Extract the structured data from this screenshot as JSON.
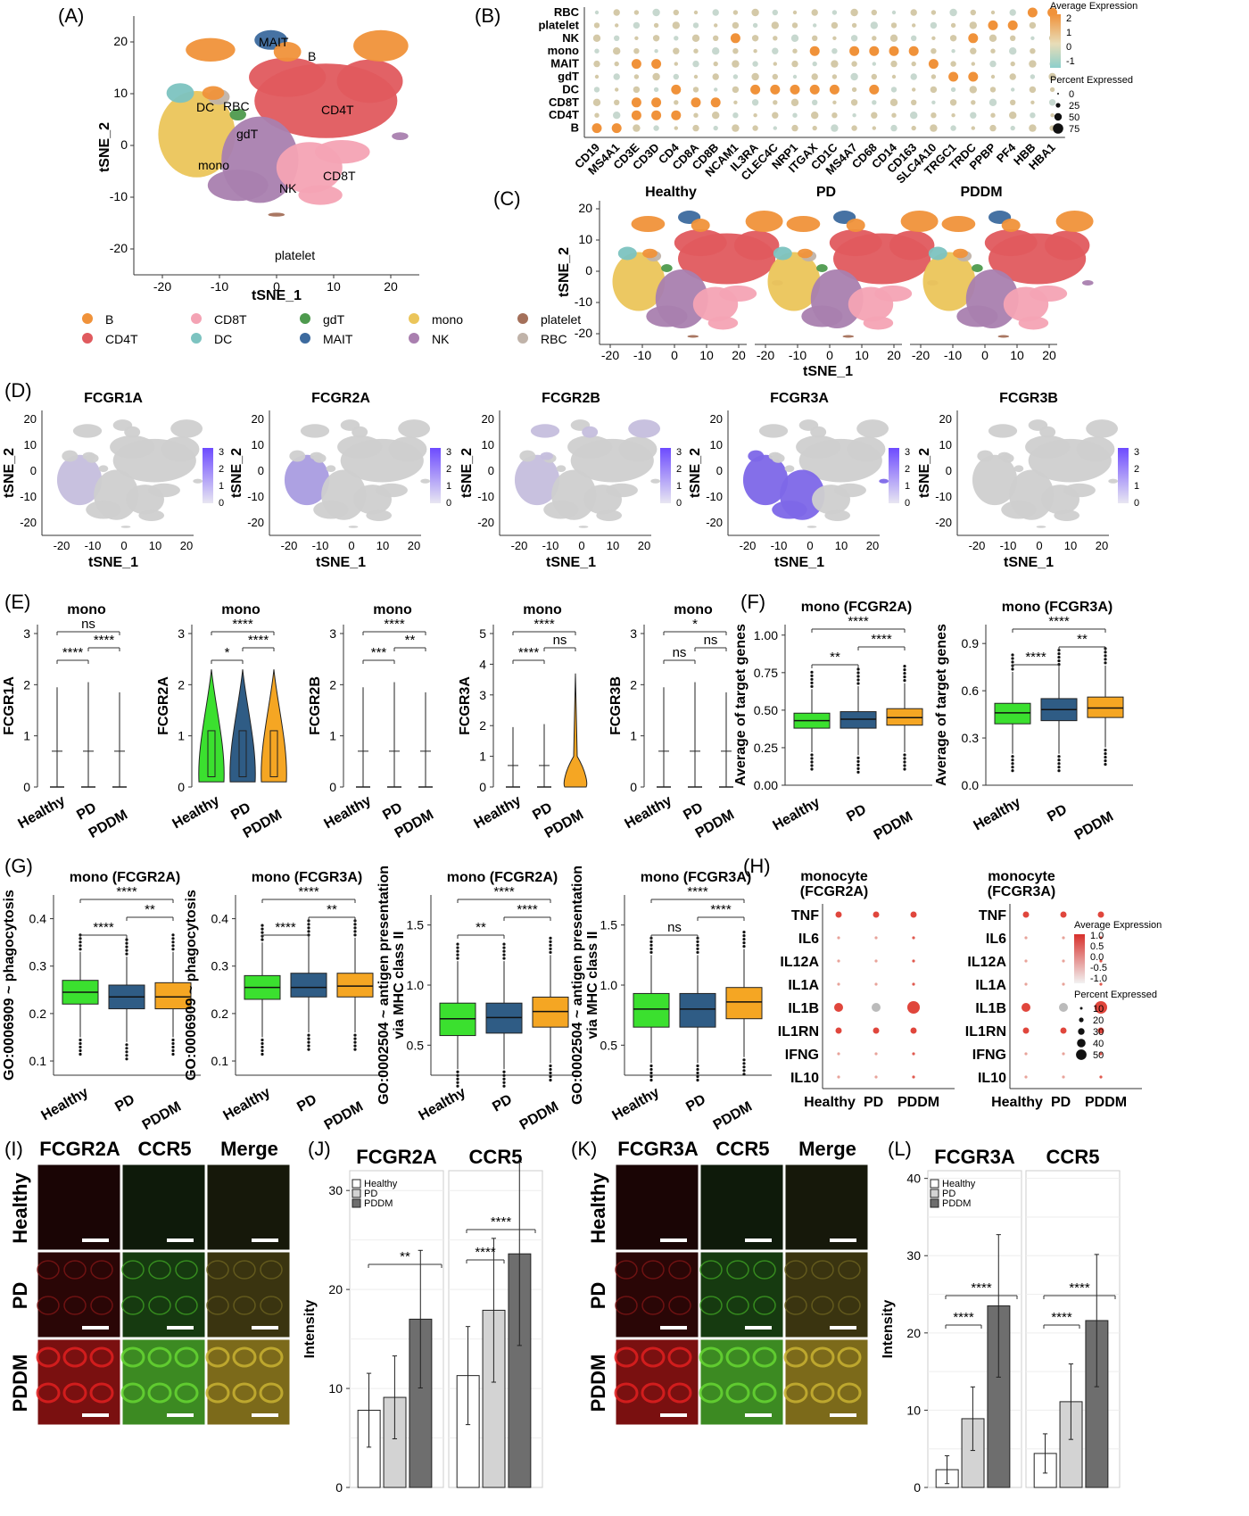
{
  "panel_labels": {
    "A": "(A)",
    "B": "(B)",
    "C": "(C)",
    "D": "(D)",
    "E": "(E)",
    "F": "(F)",
    "G": "(G)",
    "H": "(H)",
    "I": "(I)",
    "J": "(J)",
    "K": "(K)",
    "L": "(L)"
  },
  "tsne": {
    "xlabel": "tSNE_1",
    "ylabel": "tSNE_2",
    "x_ticks": [
      "-20",
      "-10",
      "0",
      "10",
      "20"
    ],
    "y_ticks": [
      "20",
      "10",
      "0",
      "-10",
      "-20"
    ],
    "cluster_labels": [
      "MAIT",
      "B",
      "DC",
      "RBC",
      "CD4T",
      "gdT",
      "mono",
      "NK",
      "CD8T",
      "platelet"
    ],
    "legend": [
      {
        "name": "B",
        "color": "#F0923A"
      },
      {
        "name": "CD8T",
        "color": "#F4A3B4"
      },
      {
        "name": "gdT",
        "color": "#4E9A4E"
      },
      {
        "name": "mono",
        "color": "#EBC55A"
      },
      {
        "name": "platelet",
        "color": "#A4705A"
      },
      {
        "name": "CD4T",
        "color": "#E05A5E"
      },
      {
        "name": "DC",
        "color": "#7CC3C0"
      },
      {
        "name": "MAIT",
        "color": "#3C6A9E"
      },
      {
        "name": "NK",
        "color": "#A97FAF"
      },
      {
        "name": "RBC",
        "color": "#C0B3A9"
      }
    ]
  },
  "dotplot_B": {
    "rows": [
      "RBC",
      "platelet",
      "NK",
      "mono",
      "MAIT",
      "gdT",
      "DC",
      "CD8T",
      "CD4T",
      "B"
    ],
    "cols": [
      "CD19",
      "MS4A1",
      "CD3E",
      "CD3D",
      "CD4",
      "CD8A",
      "CD8B",
      "NCAM1",
      "IL3RA",
      "CLEC4C",
      "NRP1",
      "ITGAX",
      "CD1C",
      "MS4A7",
      "CD68",
      "CD14",
      "CD163",
      "SLC4A10",
      "TRGC1",
      "TRDC",
      "PPBP",
      "PF4",
      "HBB",
      "HBA1"
    ],
    "legend_title": "Average Expression",
    "legend_ticks": [
      "2",
      "1",
      "0",
      "-1"
    ],
    "pct_title": "Percent Expressed",
    "pct_ticks": [
      "0",
      "25",
      "50",
      "75"
    ]
  },
  "panel_C": {
    "groups": [
      "Healthy",
      "PD",
      "PDDM"
    ]
  },
  "panel_D": {
    "genes": [
      "FCGR1A",
      "FCGR2A",
      "FCGR2B",
      "FCGR3A",
      "FCGR3B"
    ],
    "colorbar_ticks": [
      "3",
      "2",
      "1",
      "0"
    ],
    "x_ticks": [
      "-20",
      "-10",
      "0",
      "10",
      "20"
    ],
    "y_ticks": [
      "20",
      "10",
      "0",
      "-10",
      "-20"
    ]
  },
  "panel_E": {
    "title": "mono",
    "xcats": [
      "Healthy",
      "PD",
      "PDDM"
    ],
    "plots": [
      {
        "gene": "FCGR1A",
        "yticks": [
          "3",
          "2",
          "1",
          "0"
        ],
        "sig": [
          "ns",
          "****",
          "****"
        ]
      },
      {
        "gene": "FCGR2A",
        "yticks": [
          "3",
          "2",
          "1",
          "0"
        ],
        "sig": [
          "****",
          "*",
          "****"
        ]
      },
      {
        "gene": "FCGR2B",
        "yticks": [
          "3",
          "2",
          "1",
          "0"
        ],
        "sig": [
          "****",
          "***",
          "**"
        ]
      },
      {
        "gene": "FCGR3A",
        "yticks": [
          "5",
          "4",
          "3",
          "2",
          "1",
          "0"
        ],
        "sig": [
          "****",
          "****",
          "ns"
        ]
      },
      {
        "gene": "FCGR3B",
        "yticks": [
          "3",
          "2",
          "1",
          "0"
        ],
        "sig": [
          "*",
          "ns",
          "ns"
        ]
      }
    ]
  },
  "panel_F": {
    "ylabel": "Average of target genes",
    "xcats": [
      "Healthy",
      "PD",
      "PDDM"
    ],
    "plots": [
      {
        "title": "mono (FCGR2A)",
        "yticks": [
          "1.00",
          "0.75",
          "0.50",
          "0.25",
          "0.00"
        ],
        "sig": [
          "****",
          "**",
          "****"
        ]
      },
      {
        "title": "mono (FCGR3A)",
        "yticks": [
          "0.9",
          "0.6",
          "0.3",
          "0.0"
        ],
        "sig": [
          "****",
          "****",
          "**"
        ]
      }
    ]
  },
  "panel_G": {
    "xcats": [
      "Healthy",
      "PD",
      "PDDM"
    ],
    "plots": [
      {
        "title": "mono (FCGR2A)",
        "ylabel": "GO:0006909 ~ phagocytosis",
        "yticks": [
          "0.4",
          "0.3",
          "0.2",
          "0.1"
        ],
        "sig": [
          "****",
          "****",
          "**"
        ]
      },
      {
        "title": "mono (FCGR3A)",
        "ylabel": "GO:0006909 ~ phagocytosis",
        "yticks": [
          "0.4",
          "0.3",
          "0.2",
          "0.1"
        ],
        "sig": [
          "****",
          "****",
          "**"
        ]
      },
      {
        "title": "mono (FCGR2A)",
        "ylabel": "GO:0002504 ~ antigen presentation via MHC class II",
        "yticks": [
          "1.5",
          "1.0",
          "0.5"
        ],
        "sig": [
          "****",
          "**",
          "****"
        ]
      },
      {
        "title": "mono (FCGR3A)",
        "ylabel": "GO:0002504 ~ antigen presentation via MHC class II",
        "yticks": [
          "1.5",
          "1.0",
          "0.5"
        ],
        "sig": [
          "****",
          "ns",
          "****"
        ]
      }
    ]
  },
  "panel_H": {
    "titles": [
      "monocyte (FCGR2A)",
      "monocyte (FCGR3A)"
    ],
    "title_lines": [
      [
        "monocyte",
        "(FCGR2A)"
      ],
      [
        "monocyte",
        "(FCGR3A)"
      ]
    ],
    "rows": [
      "TNF",
      "IL6",
      "IL12A",
      "IL1A",
      "IL1B",
      "IL1RN",
      "IFNG",
      "IL10"
    ],
    "cols": [
      "Healthy",
      "PD",
      "PDDM"
    ],
    "legend_title": "Average Expression",
    "legend_ticks": [
      "1.0",
      "0.5",
      "0.0",
      "-0.5",
      "-1.0"
    ],
    "pct_title": "Percent Expressed",
    "pct_ticks": [
      "10",
      "20",
      "30",
      "40",
      "50"
    ]
  },
  "panel_I": {
    "cols": [
      "FCGR2A",
      "CCR5",
      "Merge"
    ],
    "rows": [
      "Healthy",
      "PD",
      "PDDM"
    ]
  },
  "panel_K": {
    "cols": [
      "FCGR3A",
      "CCR5",
      "Merge"
    ],
    "rows": [
      "Healthy",
      "PD",
      "PDDM"
    ]
  },
  "chart_data": [
    {
      "type": "bar",
      "title": "FCGR2A",
      "ylabel": "Intensity",
      "categories": [
        "Healthy",
        "PD",
        "PDDM"
      ],
      "values": [
        7.8,
        9.1,
        17.0
      ],
      "ylim": [
        0,
        32
      ],
      "yticks": [
        "30",
        "20",
        "10",
        "0"
      ],
      "sig": [
        "**"
      ]
    },
    {
      "type": "bar",
      "title": "CCR5",
      "ylabel": "Intensity",
      "categories": [
        "Healthy",
        "PD",
        "PDDM"
      ],
      "values": [
        11.3,
        17.9,
        23.6
      ],
      "ylim": [
        0,
        32
      ],
      "sig": [
        "****",
        "****"
      ]
    },
    {
      "type": "bar",
      "title": "FCGR3A",
      "ylabel": "Intensity",
      "categories": [
        "Healthy",
        "PD",
        "PDDM"
      ],
      "values": [
        2.3,
        8.9,
        23.5
      ],
      "ylim": [
        0,
        41
      ],
      "yticks": [
        "40",
        "30",
        "20",
        "10",
        "0"
      ],
      "sig": [
        "****",
        "****"
      ]
    },
    {
      "type": "bar",
      "title": "CCR5",
      "ylabel": "Intensity",
      "categories": [
        "Healthy",
        "PD",
        "PDDM"
      ],
      "values": [
        4.4,
        11.1,
        21.6
      ],
      "ylim": [
        0,
        41
      ],
      "sig": [
        "****",
        "****"
      ]
    }
  ],
  "bar_legend": [
    "Healthy",
    "PD",
    "PDDM"
  ],
  "colors": {
    "healthy": "#3BE02F",
    "pd": "#2F5C85",
    "pddm": "#F5A623",
    "bar_h": "#ffffff",
    "bar_pd": "#d3d3d3",
    "bar_pddm": "#6e6e6e",
    "grey": "#cfcfcf",
    "expr": "#6D4BFF"
  }
}
